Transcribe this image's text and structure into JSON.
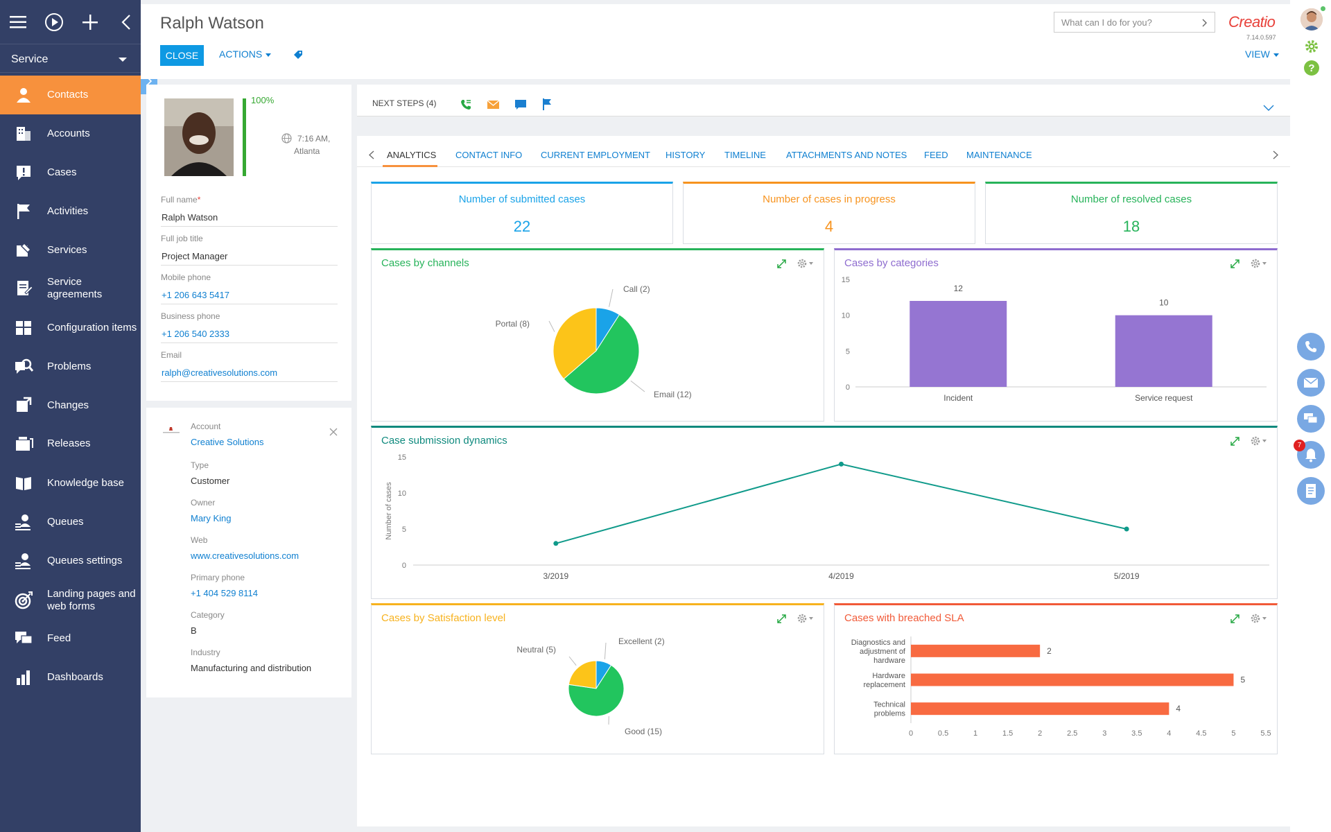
{
  "workspace": "Service",
  "nav": [
    {
      "label": "Contacts",
      "icon": "contacts-icon",
      "active": true
    },
    {
      "label": "Accounts",
      "icon": "accounts-icon"
    },
    {
      "label": "Cases",
      "icon": "cases-icon"
    },
    {
      "label": "Activities",
      "icon": "activities-icon"
    },
    {
      "label": "Services",
      "icon": "services-icon"
    },
    {
      "label": "Service agreements",
      "icon": "service-agreements-icon"
    },
    {
      "label": "Configuration items",
      "icon": "configuration-items-icon"
    },
    {
      "label": "Problems",
      "icon": "problems-icon"
    },
    {
      "label": "Changes",
      "icon": "changes-icon"
    },
    {
      "label": "Releases",
      "icon": "releases-icon"
    },
    {
      "label": "Knowledge base",
      "icon": "knowledge-base-icon"
    },
    {
      "label": "Queues",
      "icon": "queues-icon"
    },
    {
      "label": "Queues settings",
      "icon": "queues-settings-icon"
    },
    {
      "label": "Landing pages and web forms",
      "icon": "landing-pages-icon"
    },
    {
      "label": "Feed",
      "icon": "feed-icon"
    },
    {
      "label": "Dashboards",
      "icon": "dashboards-icon"
    }
  ],
  "header": {
    "title": "Ralph Watson",
    "close_label": "CLOSE",
    "actions_label": "ACTIONS",
    "search_placeholder": "What can I do for you?",
    "logo": "Creatio",
    "version": "7.14.0.597",
    "view_label": "VIEW"
  },
  "profile": {
    "completeness": "100%",
    "completeness_value": 1.0,
    "local_time": "7:16 AM,",
    "city": "Atlanta",
    "full_name_label": "Full name",
    "full_name": "Ralph Watson",
    "job_title_label": "Full job title",
    "job_title": "Project Manager",
    "mobile_label": "Mobile phone",
    "mobile": "+1 206 643 5417",
    "business_label": "Business phone",
    "business": "+1 206 540 2333",
    "email_label": "Email",
    "email": "ralph@creativesolutions.com"
  },
  "account": {
    "account_label": "Account",
    "account": "Creative Solutions",
    "type_label": "Type",
    "type": "Customer",
    "owner_label": "Owner",
    "owner": "Mary King",
    "web_label": "Web",
    "web": "www.creativesolutions.com",
    "phone_label": "Primary phone",
    "phone": "+1 404 529 8114",
    "category_label": "Category",
    "category": "B",
    "industry_label": "Industry",
    "industry": "Manufacturing and distribution"
  },
  "next_steps": "NEXT STEPS (4)",
  "tabs": [
    "ANALYTICS",
    "CONTACT INFO",
    "CURRENT EMPLOYMENT",
    "HISTORY",
    "TIMELINE",
    "ATTACHMENTS AND NOTES",
    "FEED",
    "MAINTENANCE"
  ],
  "kpis": [
    {
      "title": "Number of submitted cases",
      "value": "22",
      "color": "#1aa3e8"
    },
    {
      "title": "Number of cases in progress",
      "value": "4",
      "color": "#f7931e"
    },
    {
      "title": "Number of resolved cases",
      "value": "18",
      "color": "#27b35a"
    }
  ],
  "notifications_count": "7",
  "colors": {
    "accent": "#f7913d",
    "sidebar": "#334066",
    "link": "#0e7fd0",
    "button": "#0e99e3"
  },
  "chart_data": [
    {
      "type": "pie",
      "title": "Cases by channels",
      "title_color": "#27b35a",
      "slices": [
        {
          "label": "Call (2)",
          "value": 2,
          "color": "#1aa3e8"
        },
        {
          "label": "Email (12)",
          "value": 12,
          "color": "#22c55e"
        },
        {
          "label": "Portal (8)",
          "value": 8,
          "color": "#fcc419"
        }
      ]
    },
    {
      "type": "bar",
      "title": "Cases by categories",
      "title_color": "#8e6ccf",
      "categories": [
        "Incident",
        "Service request"
      ],
      "values": [
        12,
        10
      ],
      "data_labels": [
        "12",
        "10"
      ],
      "ylim": [
        0,
        15
      ],
      "yticks": [
        "0",
        "5",
        "10",
        "15"
      ],
      "color": "#9575d2"
    },
    {
      "type": "line",
      "title": "Case submission dynamics",
      "title_color": "#0f8a7e",
      "ylabel": "Number of cases",
      "categories": [
        "3/2019",
        "4/2019",
        "5/2019"
      ],
      "values": [
        3,
        14,
        5
      ],
      "ylim": [
        0,
        15
      ],
      "yticks": [
        "0",
        "5",
        "10",
        "15"
      ],
      "color": "#0f9a8a"
    },
    {
      "type": "pie",
      "title": "Cases by Satisfaction level",
      "title_color": "#f7b21e",
      "slices": [
        {
          "label": "Excellent (2)",
          "value": 2,
          "color": "#1aa3e8"
        },
        {
          "label": "Good (15)",
          "value": 15,
          "color": "#22c55e"
        },
        {
          "label": "Neutral (5)",
          "value": 5,
          "color": "#fcc419"
        }
      ]
    },
    {
      "type": "bar",
      "orientation": "horizontal",
      "title": "Cases with breached SLA",
      "title_color": "#f15a38",
      "categories": [
        "Diagnostics and adjustment of hardware",
        "Hardware replacement",
        "Technical problems"
      ],
      "values": [
        2,
        5,
        4
      ],
      "data_labels": [
        "2",
        "5",
        "4"
      ],
      "xlim": [
        0,
        5.5
      ],
      "xticks": [
        "0",
        "0.5",
        "1",
        "1.5",
        "2",
        "2.5",
        "3",
        "3.5",
        "4",
        "4.5",
        "5",
        "5.5"
      ],
      "color": "#f86a41"
    }
  ]
}
